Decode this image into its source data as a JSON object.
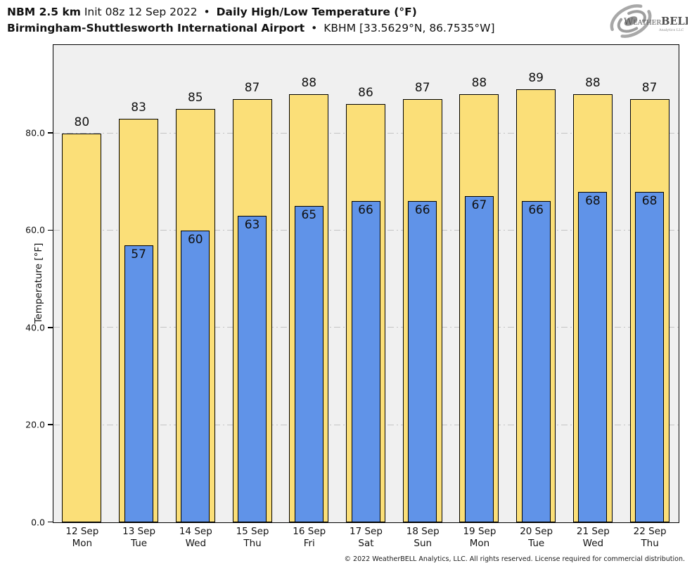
{
  "header": {
    "title_part1_bold": "NBM 2.5 km",
    "title_part1_regular": "Init 08z 12 Sep 2022",
    "title_separator": "•",
    "title_part2_bold": "Daily High/Low Temperature (°F)",
    "subtitle_bold": "Birmingham-Shuttlesworth International Airport",
    "subtitle_separator": "•",
    "subtitle_regular": "KBHM [33.5629°N, 86.7535°W]"
  },
  "logo": {
    "name": "weatherbell-logo",
    "text_weather": "Weather",
    "text_bell": "BELL",
    "text_sub": "Analytics LLC",
    "swirl_color": "#9e9e9e",
    "text_color": "#555555"
  },
  "chart_data": {
    "type": "bar",
    "title": "NBM 2.5 km Init 08z 12 Sep 2022 • Daily High/Low Temperature (°F)",
    "subtitle": "Birmingham-Shuttlesworth International Airport • KBHM [33.5629°N, 86.7535°W]",
    "xlabel": "",
    "ylabel": "Temperature [°F]",
    "ylim": [
      0,
      98
    ],
    "yticks": [
      0.0,
      20.0,
      40.0,
      60.0,
      80.0
    ],
    "ytick_labels": [
      "0.0",
      "20.0",
      "40.0",
      "60.0",
      "80.0"
    ],
    "grid": {
      "axis": "y",
      "style": "dash-dot",
      "color": "#c4c4c4"
    },
    "legend_position": "none",
    "plot_background": "#F0F0F0",
    "categories": [
      {
        "date": "12 Sep",
        "day": "Mon"
      },
      {
        "date": "13 Sep",
        "day": "Tue"
      },
      {
        "date": "14 Sep",
        "day": "Wed"
      },
      {
        "date": "15 Sep",
        "day": "Thu"
      },
      {
        "date": "16 Sep",
        "day": "Fri"
      },
      {
        "date": "17 Sep",
        "day": "Sat"
      },
      {
        "date": "18 Sep",
        "day": "Sun"
      },
      {
        "date": "19 Sep",
        "day": "Mon"
      },
      {
        "date": "20 Sep",
        "day": "Tue"
      },
      {
        "date": "21 Sep",
        "day": "Wed"
      },
      {
        "date": "22 Sep",
        "day": "Thu"
      }
    ],
    "series": [
      {
        "name": "High",
        "color": "#FBDF78",
        "border_color": "#000000",
        "values": [
          80,
          83,
          85,
          87,
          88,
          86,
          87,
          88,
          89,
          88,
          87
        ]
      },
      {
        "name": "Low",
        "color": "#6093E8",
        "border_color": "#000000",
        "values": [
          null,
          57,
          60,
          63,
          65,
          66,
          66,
          67,
          66,
          68,
          68
        ]
      }
    ]
  },
  "footer": {
    "copyright": "© 2022 WeatherBELL Analytics, LLC. All rights reserved. License required for commercial distribution."
  }
}
